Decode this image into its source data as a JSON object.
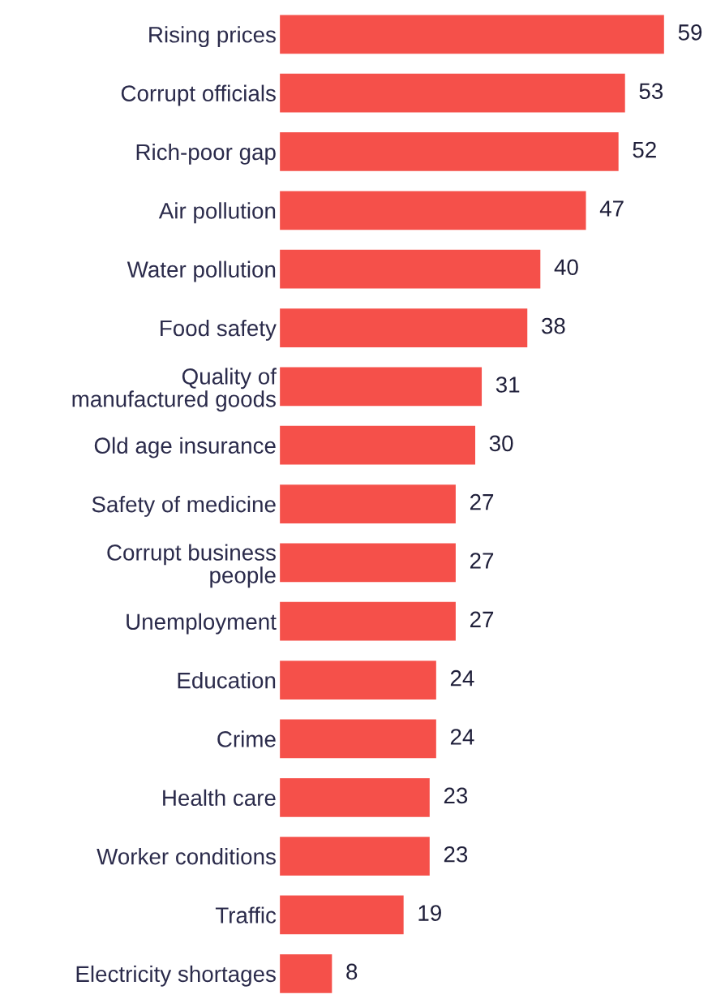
{
  "chart_data": {
    "type": "bar",
    "orientation": "horizontal",
    "categories": [
      "Rising prices",
      "Corrupt officials",
      "Rich-poor gap",
      "Air pollution",
      "Water pollution",
      "Food safety",
      "Quality of\nmanufactured goods",
      "Old age insurance",
      "Safety of medicine",
      "Corrupt business\npeople",
      "Unemployment",
      "Education",
      "Crime",
      "Health care",
      "Worker conditions",
      "Traffic",
      "Electricity shortages"
    ],
    "values": [
      59,
      53,
      52,
      47,
      40,
      38,
      31,
      30,
      27,
      27,
      27,
      24,
      24,
      23,
      23,
      19,
      8
    ],
    "color": "#f5504a",
    "data_labels": true,
    "grid": false,
    "legend": false
  }
}
